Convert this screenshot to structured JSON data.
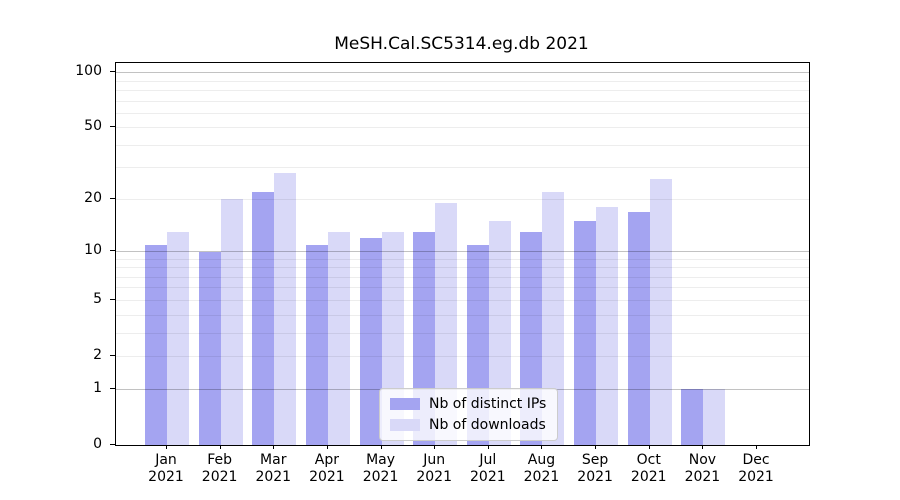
{
  "title": "MeSH.Cal.SC5314.eg.db 2021",
  "chart_data": {
    "type": "bar",
    "title": "MeSH.Cal.SC5314.eg.db 2021",
    "categories": [
      "Jan 2021",
      "Feb 2021",
      "Mar 2021",
      "Apr 2021",
      "May 2021",
      "Jun 2021",
      "Jul 2021",
      "Aug 2021",
      "Sep 2021",
      "Oct 2021",
      "Nov 2021",
      "Dec 2021"
    ],
    "series": [
      {
        "name": "Nb of distinct IPs",
        "color": "#a4a4f1",
        "values": [
          11,
          10,
          22,
          11,
          12,
          13,
          11,
          13,
          15,
          17,
          1,
          0
        ]
      },
      {
        "name": "Nb of downloads",
        "color": "#d9d9f8",
        "values": [
          13,
          20,
          28,
          13,
          13,
          19,
          15,
          22,
          18,
          26,
          1,
          0
        ]
      }
    ],
    "xlabel": "",
    "ylabel": "",
    "yscale": "log1p",
    "ylim": [
      0,
      113
    ],
    "ytick_values": [
      0,
      1,
      2,
      5,
      10,
      20,
      50,
      100
    ],
    "ytick_labels": [
      "0",
      "1",
      "2",
      "5",
      "10",
      "20",
      "50",
      "100"
    ],
    "major_gridlines": [
      1,
      10,
      100
    ],
    "minor_gridlines": [
      2,
      3,
      4,
      5,
      6,
      7,
      8,
      9,
      20,
      30,
      40,
      50,
      60,
      70,
      80,
      90
    ],
    "grid": true,
    "legend_position": "lower center",
    "background": "#ffffff"
  },
  "legend": {
    "items": [
      {
        "label": "Nb of distinct IPs"
      },
      {
        "label": "Nb of downloads"
      }
    ]
  }
}
